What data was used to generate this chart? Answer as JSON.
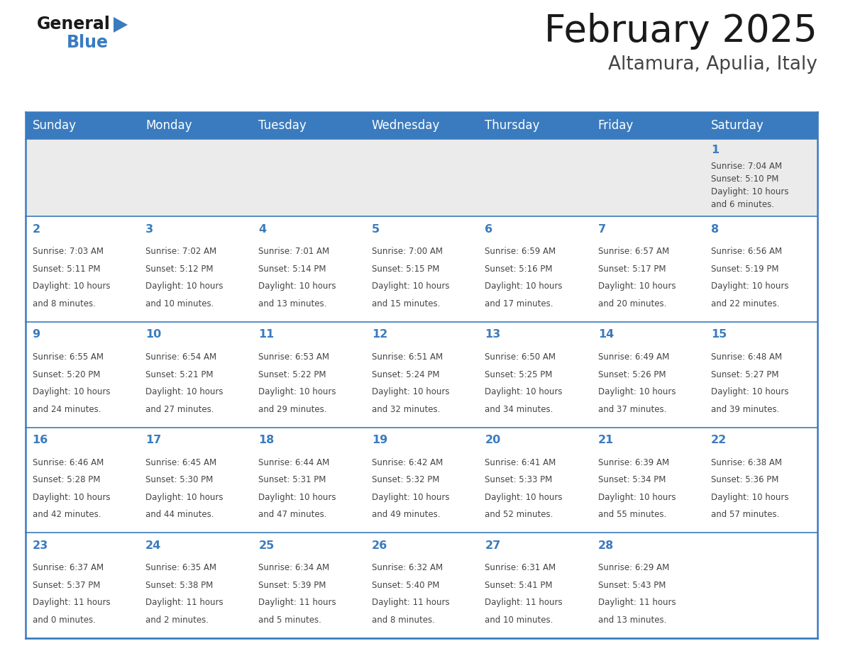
{
  "title": "February 2025",
  "subtitle": "Altamura, Apulia, Italy",
  "days_of_week": [
    "Sunday",
    "Monday",
    "Tuesday",
    "Wednesday",
    "Thursday",
    "Friday",
    "Saturday"
  ],
  "header_bg": "#3a7bbf",
  "header_text": "#ffffff",
  "row1_bg": "#ebebeb",
  "row_bg": "#ffffff",
  "border_color": "#3a7bbf",
  "day_text_color": "#3a7bbf",
  "info_text_color": "#444444",
  "title_color": "#1a1a1a",
  "subtitle_color": "#444444",
  "calendar": [
    [
      null,
      null,
      null,
      null,
      null,
      null,
      {
        "day": 1,
        "sunrise": "7:04 AM",
        "sunset": "5:10 PM",
        "daylight": "10 hours and 6 minutes."
      }
    ],
    [
      {
        "day": 2,
        "sunrise": "7:03 AM",
        "sunset": "5:11 PM",
        "daylight": "10 hours and 8 minutes."
      },
      {
        "day": 3,
        "sunrise": "7:02 AM",
        "sunset": "5:12 PM",
        "daylight": "10 hours and 10 minutes."
      },
      {
        "day": 4,
        "sunrise": "7:01 AM",
        "sunset": "5:14 PM",
        "daylight": "10 hours and 13 minutes."
      },
      {
        "day": 5,
        "sunrise": "7:00 AM",
        "sunset": "5:15 PM",
        "daylight": "10 hours and 15 minutes."
      },
      {
        "day": 6,
        "sunrise": "6:59 AM",
        "sunset": "5:16 PM",
        "daylight": "10 hours and 17 minutes."
      },
      {
        "day": 7,
        "sunrise": "6:57 AM",
        "sunset": "5:17 PM",
        "daylight": "10 hours and 20 minutes."
      },
      {
        "day": 8,
        "sunrise": "6:56 AM",
        "sunset": "5:19 PM",
        "daylight": "10 hours and 22 minutes."
      }
    ],
    [
      {
        "day": 9,
        "sunrise": "6:55 AM",
        "sunset": "5:20 PM",
        "daylight": "10 hours and 24 minutes."
      },
      {
        "day": 10,
        "sunrise": "6:54 AM",
        "sunset": "5:21 PM",
        "daylight": "10 hours and 27 minutes."
      },
      {
        "day": 11,
        "sunrise": "6:53 AM",
        "sunset": "5:22 PM",
        "daylight": "10 hours and 29 minutes."
      },
      {
        "day": 12,
        "sunrise": "6:51 AM",
        "sunset": "5:24 PM",
        "daylight": "10 hours and 32 minutes."
      },
      {
        "day": 13,
        "sunrise": "6:50 AM",
        "sunset": "5:25 PM",
        "daylight": "10 hours and 34 minutes."
      },
      {
        "day": 14,
        "sunrise": "6:49 AM",
        "sunset": "5:26 PM",
        "daylight": "10 hours and 37 minutes."
      },
      {
        "day": 15,
        "sunrise": "6:48 AM",
        "sunset": "5:27 PM",
        "daylight": "10 hours and 39 minutes."
      }
    ],
    [
      {
        "day": 16,
        "sunrise": "6:46 AM",
        "sunset": "5:28 PM",
        "daylight": "10 hours and 42 minutes."
      },
      {
        "day": 17,
        "sunrise": "6:45 AM",
        "sunset": "5:30 PM",
        "daylight": "10 hours and 44 minutes."
      },
      {
        "day": 18,
        "sunrise": "6:44 AM",
        "sunset": "5:31 PM",
        "daylight": "10 hours and 47 minutes."
      },
      {
        "day": 19,
        "sunrise": "6:42 AM",
        "sunset": "5:32 PM",
        "daylight": "10 hours and 49 minutes."
      },
      {
        "day": 20,
        "sunrise": "6:41 AM",
        "sunset": "5:33 PM",
        "daylight": "10 hours and 52 minutes."
      },
      {
        "day": 21,
        "sunrise": "6:39 AM",
        "sunset": "5:34 PM",
        "daylight": "10 hours and 55 minutes."
      },
      {
        "day": 22,
        "sunrise": "6:38 AM",
        "sunset": "5:36 PM",
        "daylight": "10 hours and 57 minutes."
      }
    ],
    [
      {
        "day": 23,
        "sunrise": "6:37 AM",
        "sunset": "5:37 PM",
        "daylight": "11 hours and 0 minutes."
      },
      {
        "day": 24,
        "sunrise": "6:35 AM",
        "sunset": "5:38 PM",
        "daylight": "11 hours and 2 minutes."
      },
      {
        "day": 25,
        "sunrise": "6:34 AM",
        "sunset": "5:39 PM",
        "daylight": "11 hours and 5 minutes."
      },
      {
        "day": 26,
        "sunrise": "6:32 AM",
        "sunset": "5:40 PM",
        "daylight": "11 hours and 8 minutes."
      },
      {
        "day": 27,
        "sunrise": "6:31 AM",
        "sunset": "5:41 PM",
        "daylight": "11 hours and 10 minutes."
      },
      {
        "day": 28,
        "sunrise": "6:29 AM",
        "sunset": "5:43 PM",
        "daylight": "11 hours and 13 minutes."
      },
      null
    ]
  ]
}
